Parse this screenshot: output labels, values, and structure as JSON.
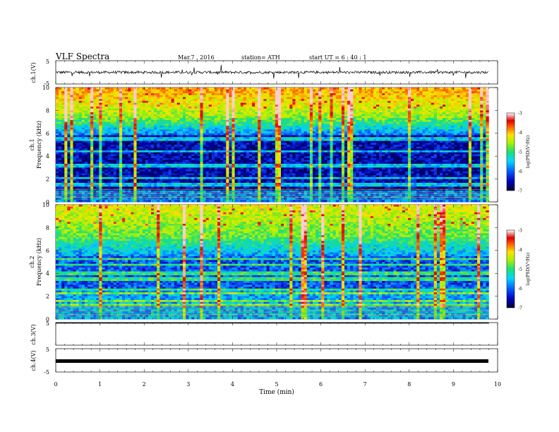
{
  "header": {
    "title": "VLF  Spectra",
    "date": "Mar.7  , 2016",
    "station": "station= ATH",
    "start": "start  UT =   6  : 40 : 1"
  },
  "chart_data": [
    {
      "type": "line",
      "panel": "ch1-waveform",
      "ylabel": "ch.1(V)",
      "ylim": [
        -5,
        5
      ],
      "y_ticks": [
        "5",
        "-5"
      ],
      "series_level_approx": 0,
      "x_range": [
        0,
        10
      ]
    },
    {
      "type": "heatmap",
      "panel": "ch1-spectrogram",
      "ylabel_channel": "ch.1",
      "ylabel": "Frequency  (kHz)",
      "ylim": [
        0,
        10
      ],
      "y_ticks": [
        "0",
        "2",
        "4",
        "6",
        "8",
        "10"
      ],
      "x_range": [
        0,
        10
      ],
      "colorbar": {
        "label": "log(PSD(V²/Hz)",
        "ticks": [
          "-3",
          "-4",
          "-5",
          "-6",
          "-7"
        ],
        "range": [
          -7,
          -3
        ]
      }
    },
    {
      "type": "heatmap",
      "panel": "ch2-spectrogram",
      "ylabel_channel": "ch.2",
      "ylabel": "Frequency  (kHz)",
      "ylim": [
        0,
        10
      ],
      "y_ticks": [
        "0",
        "2",
        "4",
        "6",
        "8",
        "10"
      ],
      "x_range": [
        0,
        10
      ],
      "colorbar": {
        "label": "log(PSD(V²/Hz)",
        "ticks": [
          "-3",
          "-4",
          "-5",
          "-6",
          "-7"
        ],
        "range": [
          -7,
          -3
        ]
      }
    },
    {
      "type": "line",
      "panel": "ch3-waveform",
      "ylabel": "ch.3(V)",
      "ylim": [
        -5,
        5
      ],
      "y_ticks": [
        "5"
      ],
      "series_level_approx": -5,
      "x_range": [
        0,
        10
      ]
    },
    {
      "type": "line",
      "panel": "ch4-waveform",
      "ylabel": "ch.4(V)",
      "ylim": [
        -5,
        5
      ],
      "y_ticks": [
        "5",
        "-5"
      ],
      "series_level_approx": -1.3,
      "x_range": [
        0,
        10
      ]
    }
  ],
  "x_axis": {
    "label": "Time  (min)",
    "ticks": [
      "0",
      "1",
      "2",
      "3",
      "4",
      "5",
      "6",
      "7",
      "8",
      "9",
      "10"
    ],
    "range": [
      0,
      10
    ],
    "data_end_min": 9.8
  },
  "colors": {
    "spectrogram_stops": [
      "#000030",
      "#0000a0",
      "#1050ff",
      "#00d0ff",
      "#20e070",
      "#b0f000",
      "#ffe000",
      "#ff6000",
      "#e00000",
      "#ffd0d0"
    ]
  }
}
